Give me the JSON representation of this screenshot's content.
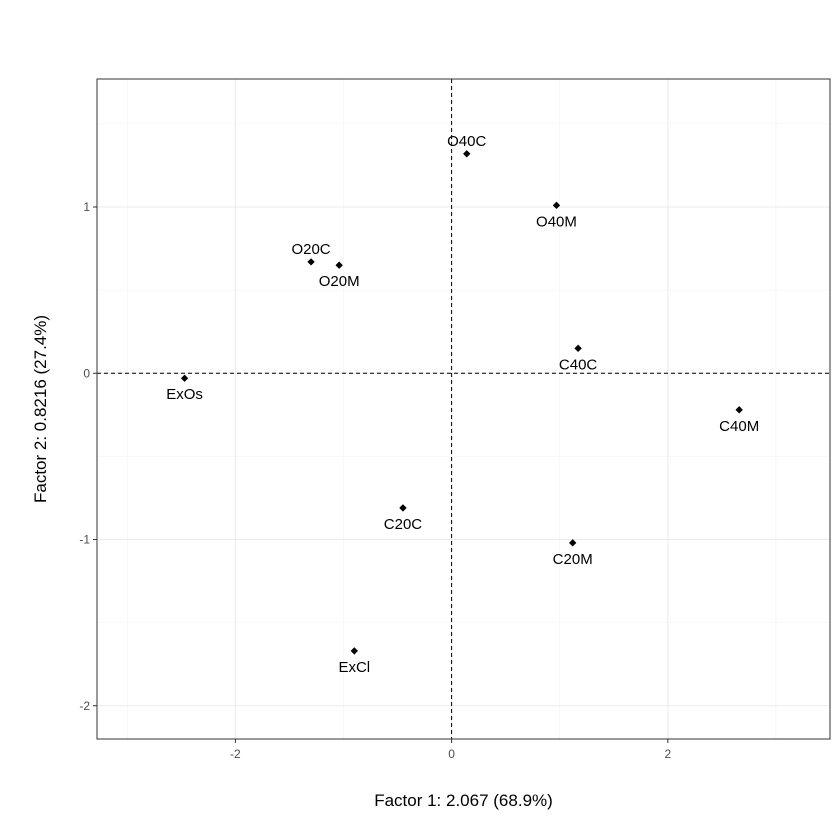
{
  "chart_data": {
    "type": "scatter",
    "xlabel": "Factor 1: 2.067 (68.9%)",
    "ylabel": "Factor 2: 0.8216 (27.4%)",
    "xlim": [
      -3.28,
      3.5
    ],
    "ylim": [
      -2.2,
      1.77
    ],
    "x_ticks": [
      -2,
      0,
      2
    ],
    "y_ticks": [
      -2,
      -1,
      0,
      1
    ],
    "x_tick_labels": [
      "-2",
      "0",
      "2"
    ],
    "y_tick_labels": [
      "-2",
      "-1",
      "0",
      "1"
    ],
    "grid": true,
    "reference_lines": {
      "x": 0,
      "y": 0,
      "style": "dashed"
    },
    "points": [
      {
        "label": "O40C",
        "x": 0.14,
        "y": 1.32,
        "label_pos": "above"
      },
      {
        "label": "O40M",
        "x": 0.97,
        "y": 1.01,
        "label_pos": "below"
      },
      {
        "label": "O20C",
        "x": -1.3,
        "y": 0.67,
        "label_pos": "above"
      },
      {
        "label": "O20M",
        "x": -1.04,
        "y": 0.65,
        "label_pos": "below"
      },
      {
        "label": "C40C",
        "x": 1.17,
        "y": 0.15,
        "label_pos": "below"
      },
      {
        "label": "ExOs",
        "x": -2.47,
        "y": -0.03,
        "label_pos": "below"
      },
      {
        "label": "C40M",
        "x": 2.66,
        "y": -0.22,
        "label_pos": "below"
      },
      {
        "label": "C20C",
        "x": -0.45,
        "y": -0.81,
        "label_pos": "below"
      },
      {
        "label": "C20M",
        "x": 1.12,
        "y": -1.02,
        "label_pos": "below"
      },
      {
        "label": "ExCl",
        "x": -0.9,
        "y": -1.67,
        "label_pos": "below"
      }
    ]
  }
}
